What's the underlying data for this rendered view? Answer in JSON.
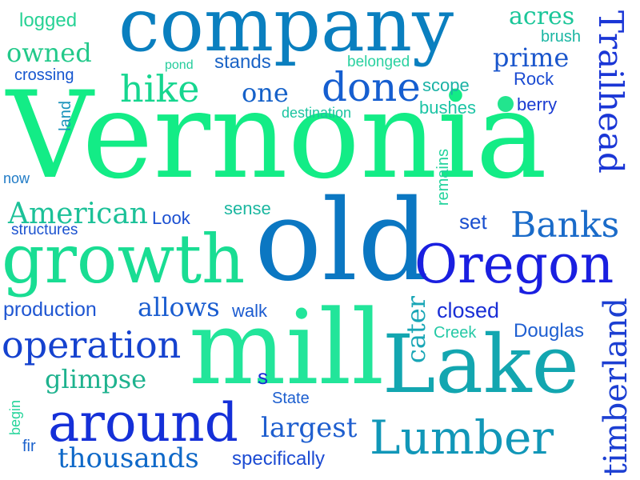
{
  "words": {
    "vernonia": {
      "text": "Vernonia",
      "color": "#13ec86"
    },
    "company": {
      "text": "company",
      "color": "#0a7fbf"
    },
    "old": {
      "text": "old",
      "color": "#0b77c2"
    },
    "mill": {
      "text": "mill",
      "color": "#22e59a"
    },
    "lake": {
      "text": "Lake",
      "color": "#13a6b0"
    },
    "growth": {
      "text": "growth",
      "color": "#19dd93"
    },
    "oregon": {
      "text": "Oregon",
      "color": "#1a1fe0"
    },
    "lumber": {
      "text": "Lumber",
      "color": "#1197b8"
    },
    "around": {
      "text": "around",
      "color": "#1530d8"
    },
    "trailhead": {
      "text": "Trailhead",
      "color": "#1a36d6"
    },
    "timberland": {
      "text": "timberland",
      "color": "#1c3fd2"
    },
    "operation": {
      "text": "operation",
      "color": "#1542cf"
    },
    "banks": {
      "text": "Banks",
      "color": "#1a6bc9"
    },
    "done": {
      "text": "done",
      "color": "#155ed0"
    },
    "hike": {
      "text": "hike",
      "color": "#16d68f"
    },
    "owned": {
      "text": "owned",
      "color": "#22c98a"
    },
    "american": {
      "text": "American",
      "color": "#1cc198"
    },
    "thousands": {
      "text": "thousands",
      "color": "#0e68c8"
    },
    "glimpse": {
      "text": "glimpse",
      "color": "#1eb28e"
    },
    "largest": {
      "text": "largest",
      "color": "#1f5fcf"
    },
    "allows": {
      "text": "allows",
      "color": "#1a5dd0"
    },
    "prime": {
      "text": "prime",
      "color": "#1a56cc"
    },
    "production": {
      "text": "production",
      "color": "#1f56d2"
    },
    "closed": {
      "text": "closed",
      "color": "#1a2fd6"
    },
    "douglas": {
      "text": "Douglas",
      "color": "#1f5fd1"
    },
    "specifically": {
      "text": "specifically",
      "color": "#1c4bd3"
    },
    "cater": {
      "text": "cater",
      "color": "#19a6b6"
    },
    "acres": {
      "text": "acres",
      "color": "#1bc699"
    },
    "one": {
      "text": "one",
      "color": "#1561c9"
    },
    "logged": {
      "text": "logged",
      "color": "#27d295"
    },
    "stands": {
      "text": "stands",
      "color": "#1b64c6"
    },
    "scope": {
      "text": "scope",
      "color": "#1bb2a5"
    },
    "set": {
      "text": "set",
      "color": "#1a4fcf"
    },
    "sense": {
      "text": "sense",
      "color": "#1bb7a0"
    },
    "look": {
      "text": "Look",
      "color": "#1b4fd1"
    },
    "crossing": {
      "text": "crossing",
      "color": "#1556cf"
    },
    "structures": {
      "text": "structures",
      "color": "#1b52d0"
    },
    "belonged": {
      "text": "belonged",
      "color": "#2ad1a0"
    },
    "pond": {
      "text": "pond",
      "color": "#25cc9c"
    },
    "destination": {
      "text": "destination",
      "color": "#1bc4a0"
    },
    "bushes": {
      "text": "bushes",
      "color": "#1cc4a5"
    },
    "berry": {
      "text": "berry",
      "color": "#1a3bd2"
    },
    "brush": {
      "text": "brush",
      "color": "#1ab6a3"
    },
    "rock": {
      "text": "Rock",
      "color": "#1a4ad2"
    },
    "land": {
      "text": "land",
      "color": "#1a93bb"
    },
    "now": {
      "text": "now",
      "color": "#1f7bc6"
    },
    "remains": {
      "text": "remains",
      "color": "#22d39c"
    },
    "walk": {
      "text": "walk",
      "color": "#1b5bd0"
    },
    "creek": {
      "text": "Creek",
      "color": "#25c9a6"
    },
    "s": {
      "text": "s",
      "color": "#1a2ed5"
    },
    "state": {
      "text": "State",
      "color": "#1b5ecf"
    },
    "begin": {
      "text": "begin",
      "color": "#25d49a"
    },
    "fir": {
      "text": "fir",
      "color": "#1b62cd"
    }
  },
  "dot_color": "#22e58e"
}
